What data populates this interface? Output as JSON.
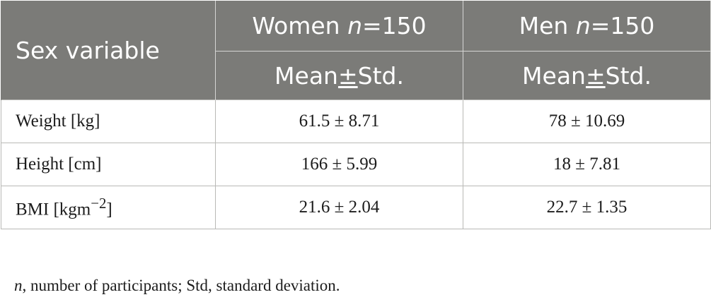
{
  "table": {
    "header": {
      "col1": "Sex variable",
      "women_label": "Women ",
      "women_n_var": "n",
      "women_n_value": "=150",
      "men_label": "Men ",
      "men_n_var": "n",
      "men_n_value": "=150",
      "sub_mean": "Mean",
      "sub_pm": "±",
      "sub_std": "Std."
    },
    "rows": [
      {
        "variable": "Weight [kg]",
        "women": "61.5 ± 8.71",
        "men": "78 ± 10.69"
      },
      {
        "variable": "Height [cm]",
        "women": "166 ± 5.99",
        "men": "18 ± 7.81"
      },
      {
        "variable_prefix": "BMI [kgm",
        "variable_sup": "−2",
        "variable_suffix": "]",
        "women": "21.6 ± 2.04",
        "men": "22.7 ± 1.35"
      }
    ]
  },
  "footnote": {
    "n_var": "n",
    "text": ", number of participants; Std, standard deviation."
  }
}
